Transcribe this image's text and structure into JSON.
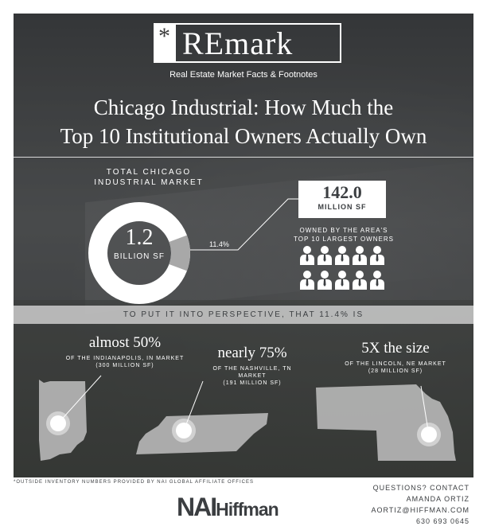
{
  "logo": {
    "star": "*",
    "word": "REmark"
  },
  "tagline": "Real Estate Market Facts & Footnotes",
  "title": {
    "line1": "Chicago Industrial: How Much the",
    "line2": "Top 10 Institutional Owners Actually Own"
  },
  "total_market": {
    "label_line1": "TOTAL CHICAGO",
    "label_line2": "INDUSTRIAL MARKET",
    "value": "1.2",
    "unit": "BILLION SF",
    "share_label": "11.4%",
    "share_fraction": 0.114
  },
  "owned": {
    "value": "142.0",
    "unit": "MILLION SF",
    "label_line1": "OWNED BY THE AREA'S",
    "label_line2": "TOP 10 LARGEST OWNERS",
    "owner_count": 10
  },
  "perspective_banner": "TO PUT IT INTO PERSPECTIVE, THAT 11.4% IS",
  "comparisons": [
    {
      "headline": "almost 50%",
      "line1": "OF THE INDIANAPOLIS, IN MARKET",
      "line2": "(300 MILLION SF)",
      "map": "indiana-map"
    },
    {
      "headline": "nearly 75%",
      "line1": "OF THE NASHVILLE, TN",
      "line2": "MARKET",
      "line3": "(191 MILLION SF)",
      "map": "tennessee-map"
    },
    {
      "headline": "5X the size",
      "line1": "OF THE LINCOLN, NE MARKET",
      "line2": "(28 MILLION SF)",
      "map": "nebraska-map"
    }
  ],
  "footnote": "*OUTSIDE INVENTORY NUMBERS PROVIDED BY NAI GLOBAL AFFILIATE OFFICES",
  "brand": {
    "nai": "NAI",
    "hiffman": "Hiffman"
  },
  "contact": {
    "line1": "QUESTIONS? CONTACT",
    "name": "AMANDA ORTIZ",
    "email": "AORTIZ@HIFFMAN.COM",
    "phone": "630 693 0645"
  },
  "colors": {
    "dark": "#3b3e41",
    "white": "#ffffff",
    "banner": "#cdcdcd",
    "donut_slice": "#a8a8a8"
  }
}
